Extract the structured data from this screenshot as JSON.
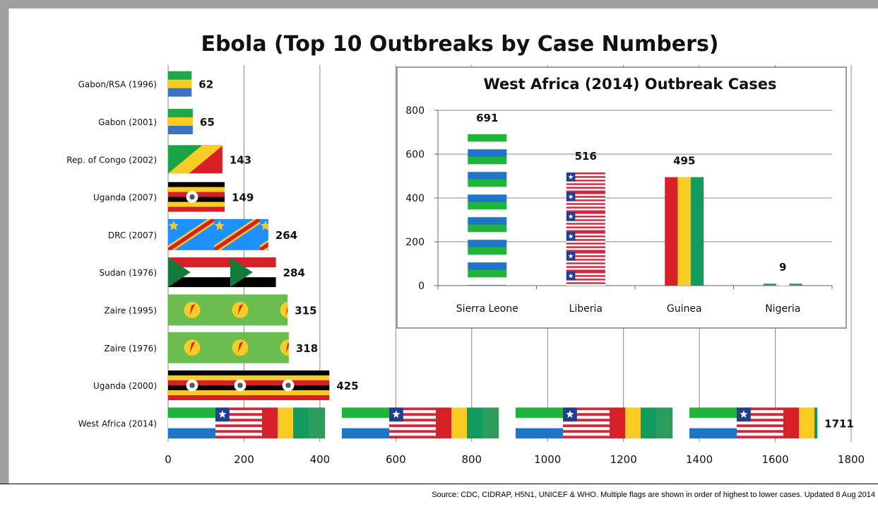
{
  "chart_data": [
    {
      "type": "bar",
      "orientation": "horizontal",
      "title": "Ebola (Top 10 Outbreaks by Case Numbers)",
      "categories": [
        "Gabon/RSA (1996)",
        "Gabon (2001)",
        "Rep. of Congo (2002)",
        "Uganda (2007)",
        "DRC (2007)",
        "Sudan (1976)",
        "Zaire (1995)",
        "Zaire (1976)",
        "Uganda (2000)",
        "West Africa (2014)"
      ],
      "values": [
        62,
        65,
        143,
        149,
        264,
        284,
        315,
        318,
        425,
        1711
      ],
      "flags": [
        "gabon",
        "gabon",
        "congo",
        "uganda",
        "drc",
        "sudan",
        "zaire",
        "zaire",
        "uganda",
        "westafrica"
      ],
      "xlim": [
        0,
        1800
      ],
      "xticks": [
        0,
        200,
        400,
        600,
        800,
        1000,
        1200,
        1400,
        1600,
        1800
      ],
      "grid": "vertical",
      "xlabel": "",
      "ylabel": ""
    },
    {
      "type": "bar",
      "title": "West Africa (2014) Outbreak Cases",
      "categories": [
        "Sierra Leone",
        "Liberia",
        "Guinea",
        "Nigeria"
      ],
      "values": [
        691,
        516,
        495,
        9
      ],
      "flags": [
        "sierraleone",
        "liberia",
        "guinea",
        "nigeria"
      ],
      "ylim": [
        0,
        800
      ],
      "yticks": [
        0,
        200,
        400,
        600,
        800
      ],
      "grid": "horizontal",
      "xlabel": "",
      "ylabel": ""
    }
  ],
  "colors": {
    "gabon_green": "#1fa84a",
    "gabon_yellow": "#f8cc22",
    "gabon_blue": "#3b72c4",
    "uganda_black": "#000000",
    "uganda_yellow": "#f8cc22",
    "uganda_red": "#d61f26",
    "drc_blue": "#1e90ff",
    "drc_red": "#d61f26",
    "drc_yellow": "#f8cc22",
    "sudan_red": "#d61f26",
    "sudan_white": "#ffffff",
    "sudan_black": "#000000",
    "sudan_green": "#137a3c",
    "zaire_green": "#6cbd4f",
    "zaire_yellow": "#f8cc22",
    "zaire_red": "#d61f26",
    "sl_green": "#1eb53a",
    "sl_white": "#ffffff",
    "sl_blue": "#1f75c6",
    "lib_red": "#d2263c",
    "lib_blue": "#1f3e8f",
    "guinea_red": "#d61f26",
    "guinea_yellow": "#f8cc22",
    "guinea_green": "#139a5e",
    "nigeria_green": "#2e9d5b",
    "grid": "#888888"
  },
  "footer": {
    "source": "Source: CDC, CIDRAP, H5N1, UNICEF & WHO. Multiple flags are shown in order of highest to lower cases. Updated 8 Aug 2014"
  }
}
